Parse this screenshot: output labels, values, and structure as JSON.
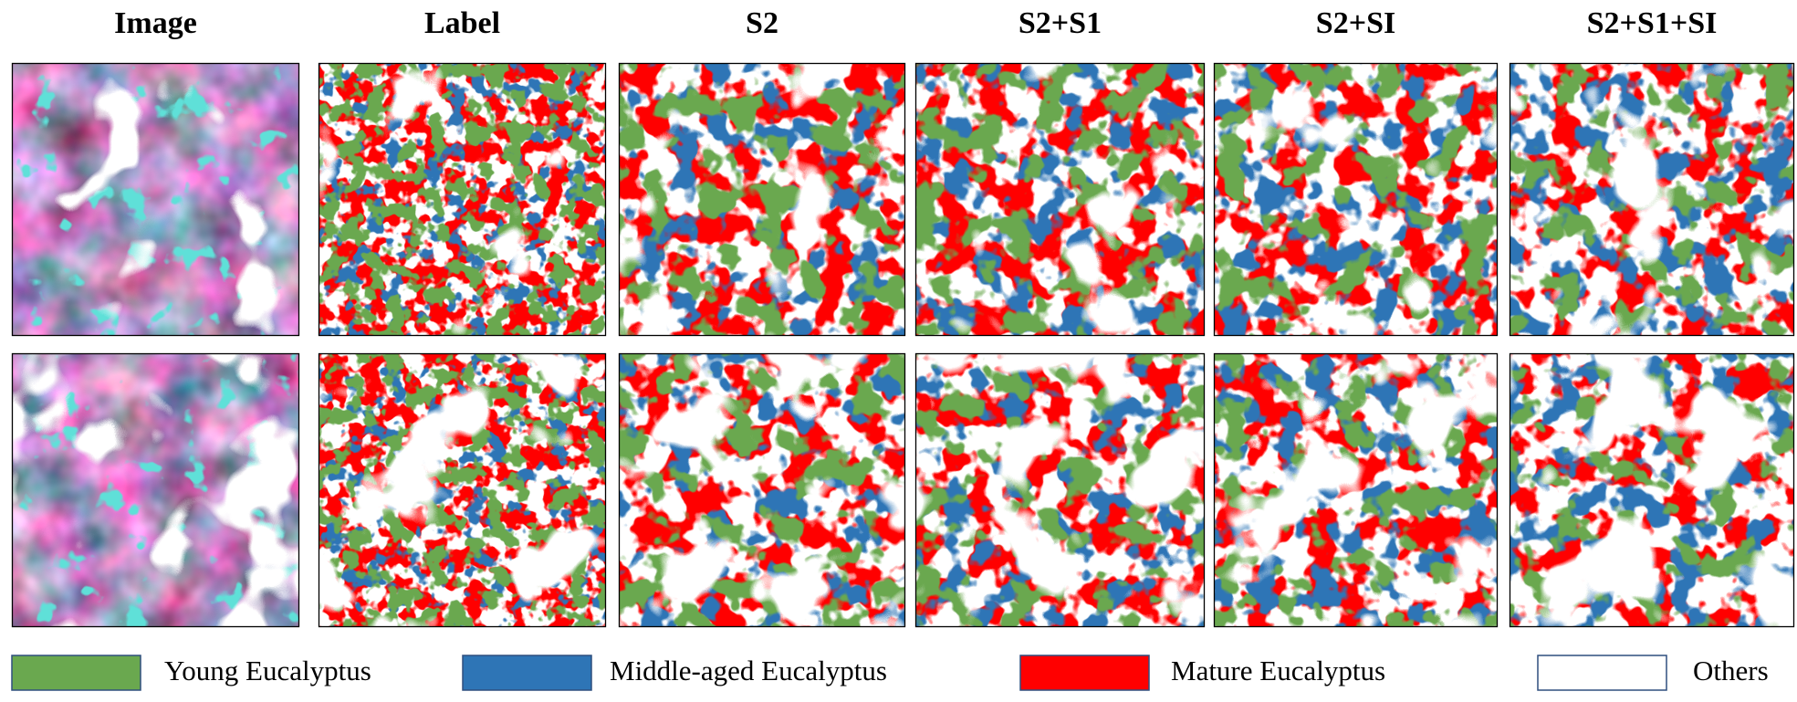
{
  "headers": [
    "Image",
    "Label",
    "S2",
    "S2+S1",
    "S2+SI",
    "S2+S1+SI"
  ],
  "legend": [
    {
      "label": "Young Eucalyptus",
      "color": "#6aa84f"
    },
    {
      "label": "Middle-aged Eucalyptus",
      "color": "#2e75b6"
    },
    {
      "label": "Mature Eucalyptus",
      "color": "#ff0000"
    },
    {
      "label": "Others",
      "color": "#ffffff"
    }
  ]
}
